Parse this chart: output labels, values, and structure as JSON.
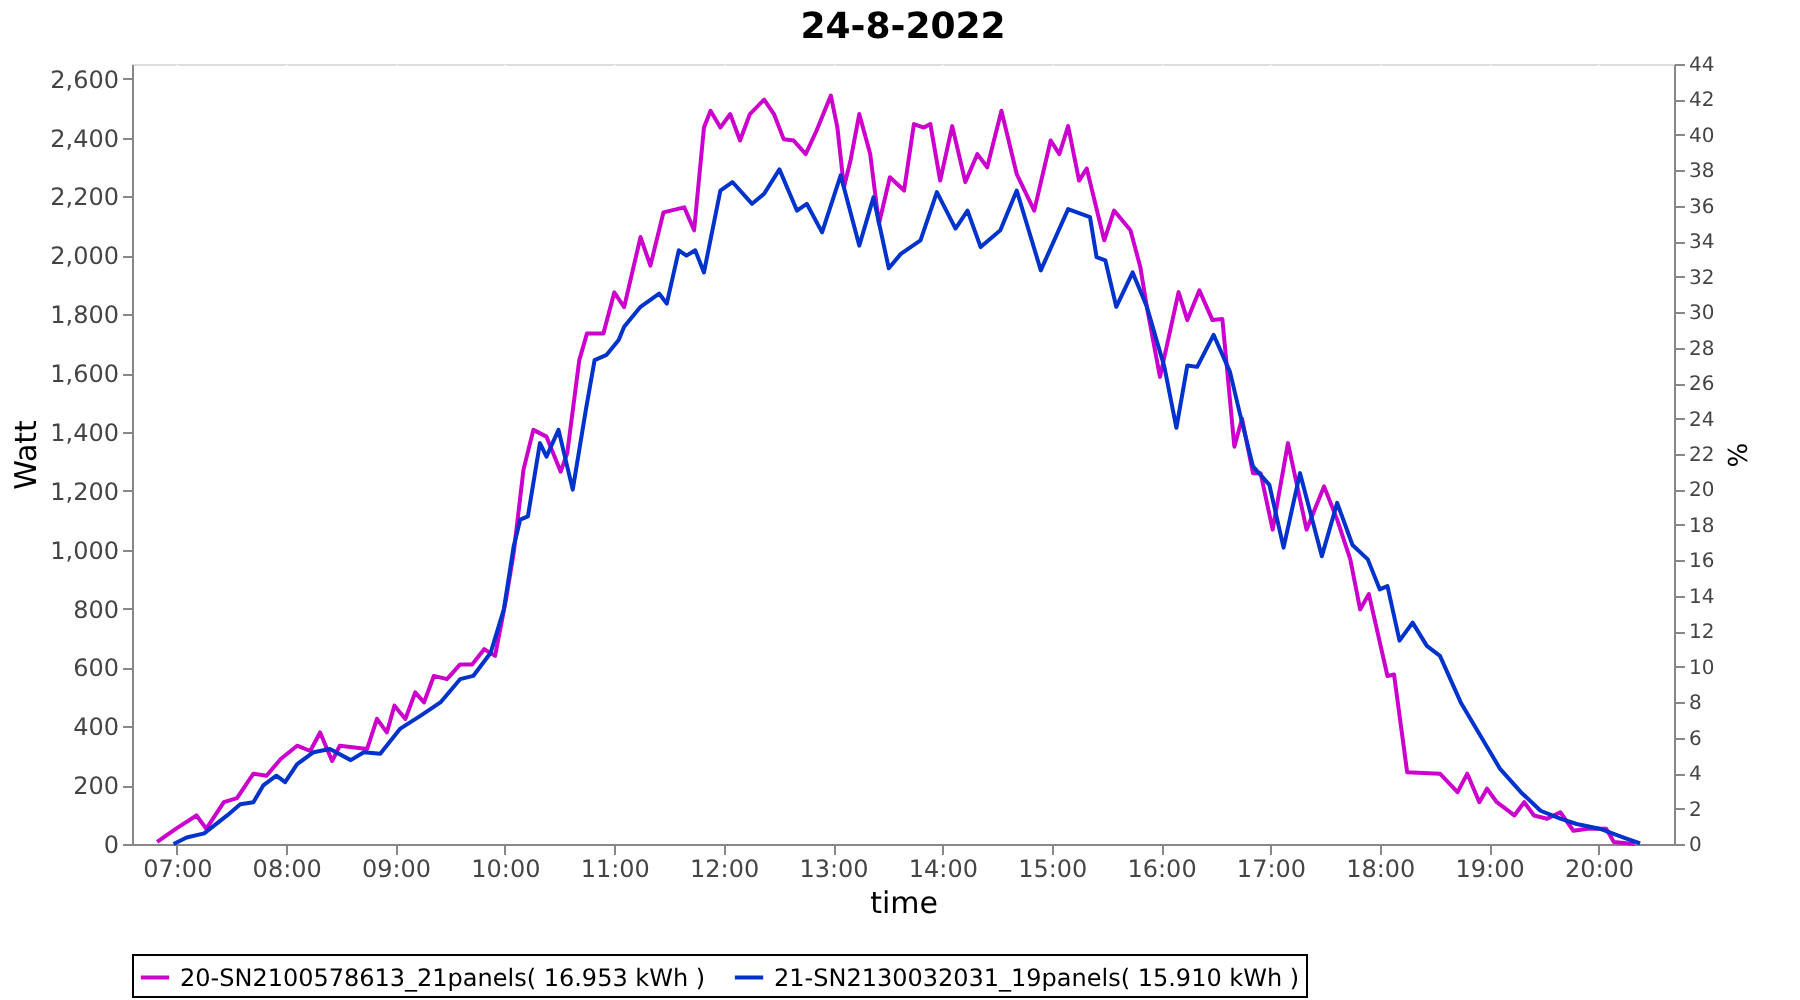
{
  "chart_data": {
    "type": "line",
    "title": "24-8-2022",
    "xlabel": "time",
    "ylabel": "Watt",
    "y2label": "%",
    "xlim": [
      6.59,
      20.69
    ],
    "xticks": [
      {
        "value": 7,
        "label": "07:00"
      },
      {
        "value": 8,
        "label": "08:00"
      },
      {
        "value": 9,
        "label": "09:00"
      },
      {
        "value": 10,
        "label": "10:00"
      },
      {
        "value": 11,
        "label": "11:00"
      },
      {
        "value": 12,
        "label": "12:00"
      },
      {
        "value": 13,
        "label": "13:00"
      },
      {
        "value": 14,
        "label": "14:00"
      },
      {
        "value": 15,
        "label": "15:00"
      },
      {
        "value": 16,
        "label": "16:00"
      },
      {
        "value": 17,
        "label": "17:00"
      },
      {
        "value": 18,
        "label": "18:00"
      },
      {
        "value": 19,
        "label": "19:00"
      },
      {
        "value": 20,
        "label": "20:00"
      }
    ],
    "ylim": [
      0,
      2650
    ],
    "yticks": [
      0,
      200,
      400,
      600,
      800,
      {
        "value": 1000,
        "label": "1,000"
      },
      {
        "value": 1200,
        "label": "1,200"
      },
      {
        "value": 1400,
        "label": "1,400"
      },
      {
        "value": 1600,
        "label": "1,600"
      },
      {
        "value": 1800,
        "label": "1,800"
      },
      {
        "value": 2000,
        "label": "2,000"
      },
      {
        "value": 2200,
        "label": "2,200"
      },
      {
        "value": 2400,
        "label": "2,400"
      },
      {
        "value": 2600,
        "label": "2,600"
      }
    ],
    "y2lim": [
      0,
      44
    ],
    "y2ticks": [
      0,
      2,
      4,
      6,
      8,
      10,
      12,
      14,
      16,
      18,
      20,
      22,
      24,
      26,
      28,
      30,
      32,
      34,
      36,
      38,
      40,
      42,
      44
    ],
    "grid": true,
    "legend": "bottom",
    "line_style": "solid",
    "marker": "none",
    "series": [
      {
        "name": "20-SN2100578613_21panels( 16.953 kWh )",
        "color": "#cc00cc",
        "x": [
          6.82,
          7.0,
          7.18,
          7.27,
          7.43,
          7.55,
          7.7,
          7.82,
          7.95,
          8.1,
          8.22,
          8.31,
          8.42,
          8.49,
          8.74,
          8.83,
          8.92,
          8.99,
          9.09,
          9.18,
          9.26,
          9.35,
          9.47,
          9.59,
          9.7,
          9.81,
          9.91,
          10.01,
          10.08,
          10.17,
          10.26,
          10.38,
          10.51,
          10.57,
          10.68,
          10.75,
          10.9,
          11.0,
          11.09,
          11.24,
          11.33,
          11.45,
          11.64,
          11.73,
          11.82,
          11.88,
          11.97,
          12.06,
          12.15,
          12.24,
          12.37,
          12.46,
          12.55,
          12.64,
          12.75,
          12.85,
          12.98,
          13.04,
          13.1,
          13.16,
          13.24,
          13.34,
          13.42,
          13.52,
          13.65,
          13.74,
          13.83,
          13.89,
          13.98,
          14.09,
          14.21,
          14.32,
          14.41,
          14.54,
          14.68,
          14.84,
          14.99,
          15.07,
          15.15,
          15.25,
          15.32,
          15.48,
          15.57,
          15.72,
          15.81,
          15.87,
          15.99,
          16.16,
          16.24,
          16.35,
          16.47,
          16.56,
          16.67,
          16.74,
          16.84,
          16.91,
          17.02,
          17.16,
          17.33,
          17.49,
          17.61,
          17.73,
          17.82,
          17.9,
          18.07,
          18.13,
          18.25,
          18.55,
          18.71,
          18.8,
          18.91,
          18.98,
          19.07,
          19.23,
          19.32,
          19.41,
          19.53,
          19.65,
          19.77,
          19.9,
          20.07,
          20.14,
          20.33
        ],
        "values": [
          7,
          54,
          97,
          52,
          142,
          156,
          239,
          232,
          289,
          334,
          316,
          379,
          282,
          334,
          323,
          425,
          379,
          470,
          425,
          515,
          481,
          571,
          560,
          610,
          610,
          662,
          639,
          831,
          989,
          1272,
          1407,
          1384,
          1265,
          1328,
          1644,
          1734,
          1734,
          1874,
          1824,
          2062,
          1965,
          2146,
          2163,
          2085,
          2434,
          2491,
          2434,
          2480,
          2390,
          2480,
          2529,
          2480,
          2394,
          2390,
          2344,
          2424,
          2543,
          2434,
          2231,
          2322,
          2480,
          2344,
          2107,
          2265,
          2220,
          2446,
          2434,
          2446,
          2254,
          2439,
          2249,
          2344,
          2299,
          2491,
          2276,
          2152,
          2390,
          2344,
          2439,
          2254,
          2295,
          2051,
          2152,
          2085,
          1960,
          1824,
          1587,
          1875,
          1780,
          1881,
          1780,
          1784,
          1350,
          1445,
          1260,
          1260,
          1068,
          1362,
          1068,
          1215,
          1102,
          967,
          797,
          849,
          571,
          576,
          244,
          239,
          176,
          239,
          142,
          188,
          142,
          97,
          142,
          97,
          86,
          108,
          45,
          52,
          52,
          7,
          0
        ]
      },
      {
        "name": "21-SN2130032031_19panels( 15.910 kWh )",
        "color": "#0033cc",
        "x": [
          6.97,
          7.09,
          7.25,
          7.46,
          7.58,
          7.7,
          7.79,
          7.91,
          7.99,
          8.1,
          8.25,
          8.4,
          8.59,
          8.71,
          8.86,
          9.04,
          9.23,
          9.41,
          9.59,
          9.71,
          9.87,
          9.99,
          10.08,
          10.14,
          10.21,
          10.32,
          10.38,
          10.49,
          10.62,
          10.74,
          10.82,
          10.93,
          11.04,
          11.09,
          11.24,
          11.41,
          11.48,
          11.59,
          11.66,
          11.74,
          11.82,
          11.97,
          12.08,
          12.26,
          12.37,
          12.51,
          12.67,
          12.76,
          12.9,
          13.07,
          13.24,
          13.37,
          13.51,
          13.62,
          13.8,
          13.95,
          14.12,
          14.23,
          14.35,
          14.53,
          14.68,
          14.9,
          15.15,
          15.35,
          15.41,
          15.49,
          15.59,
          15.74,
          15.87,
          16.03,
          16.14,
          16.24,
          16.33,
          16.48,
          16.63,
          16.72,
          16.84,
          16.99,
          17.12,
          17.27,
          17.47,
          17.61,
          17.75,
          17.89,
          18.0,
          18.07,
          18.18,
          18.3,
          18.43,
          18.55,
          18.74,
          18.92,
          19.1,
          19.29,
          19.47,
          19.65,
          19.8,
          20.01,
          20.23,
          20.38
        ],
        "values": [
          0,
          22,
          36,
          97,
          135,
          142,
          199,
          232,
          210,
          271,
          312,
          323,
          285,
          312,
          307,
          391,
          436,
          481,
          560,
          571,
          650,
          797,
          1011,
          1102,
          1113,
          1362,
          1316,
          1407,
          1204,
          1475,
          1644,
          1662,
          1712,
          1757,
          1825,
          1870,
          1836,
          2017,
          1999,
          2017,
          1942,
          2220,
          2249,
          2175,
          2209,
          2292,
          2152,
          2175,
          2078,
          2272,
          2033,
          2197,
          1956,
          2005,
          2051,
          2215,
          2091,
          2152,
          2028,
          2085,
          2220,
          1949,
          2157,
          2130,
          1994,
          1983,
          1825,
          1942,
          1825,
          1621,
          1414,
          1626,
          1621,
          1730,
          1604,
          1463,
          1283,
          1220,
          1007,
          1260,
          978,
          1159,
          1016,
          967,
          865,
          876,
          691,
          752,
          673,
          639,
          481,
          368,
          255,
          176,
          113,
          86,
          68,
          52,
          22,
          2
        ]
      }
    ]
  }
}
